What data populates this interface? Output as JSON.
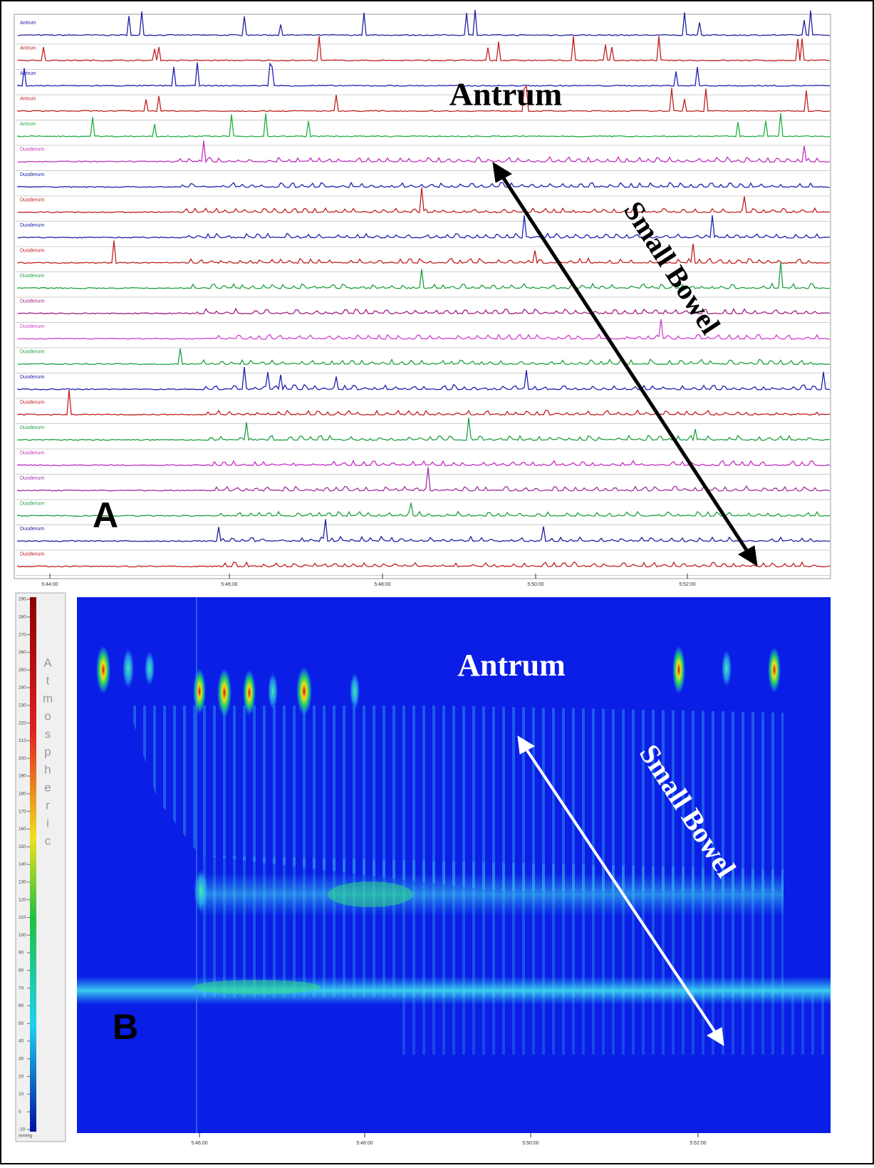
{
  "panel_a": {
    "label": "A",
    "channels": [
      "Antrum",
      "Antrum",
      "Antrum",
      "Antrum",
      "Antrum",
      "Duodenum",
      "Duodenum",
      "Duodenum",
      "Duodenum",
      "Duodenum",
      "Duodenum",
      "Duodenum",
      "Duodenum",
      "Duodenum",
      "Duodenum",
      "Duodenum",
      "Duodenum",
      "Duodenum",
      "Duodenum",
      "Duodenum",
      "Duodenum",
      "Duodenum"
    ],
    "time_labels": [
      "5:44:00",
      "5:46:00",
      "5:48:00",
      "5:50:00",
      "5:52:00"
    ],
    "annotations": {
      "antrum": "Antrum",
      "small_bowel": "Small Bowel"
    }
  },
  "panel_b": {
    "label": "B",
    "time_labels": [
      "5:46:00",
      "5:48:00",
      "5:50:00",
      "5:52:00"
    ],
    "annotations": {
      "antrum": "Antrum",
      "small_bowel": "Small Bowel"
    },
    "colorbar": {
      "ticks": [
        290,
        280,
        270,
        260,
        250,
        240,
        230,
        220,
        210,
        200,
        190,
        180,
        170,
        160,
        150,
        140,
        130,
        120,
        110,
        100,
        90,
        80,
        70,
        60,
        50,
        40,
        30,
        20,
        10,
        0,
        -10
      ],
      "title": "Atmospheric",
      "unit": "mmHg"
    }
  }
}
